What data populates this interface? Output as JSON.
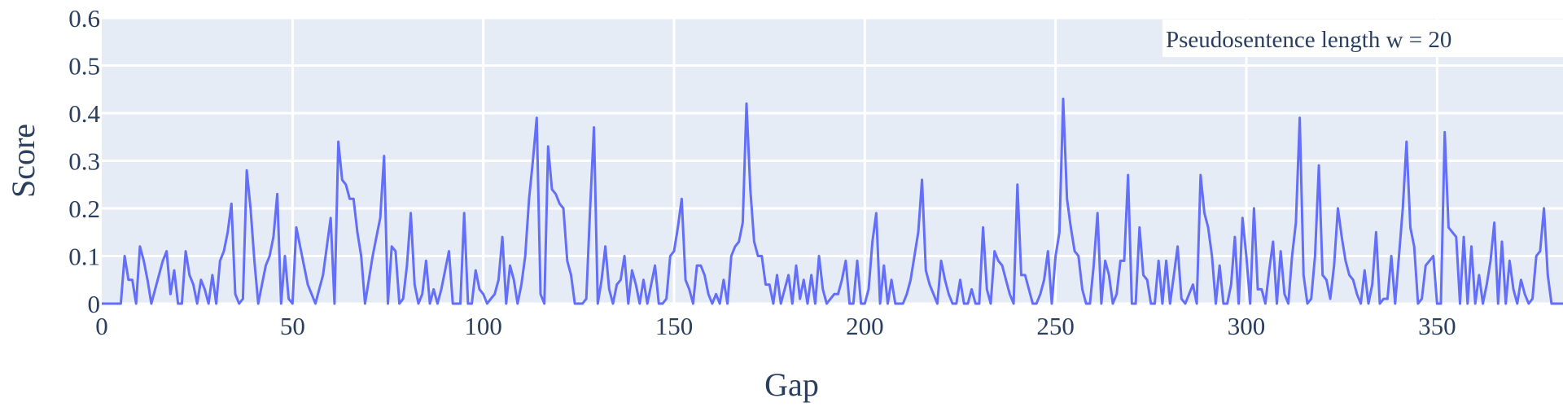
{
  "chart_data": {
    "type": "line",
    "title": "",
    "xlabel": "Gap",
    "ylabel": "Score",
    "xlim": [
      0,
      383
    ],
    "ylim": [
      0,
      0.6
    ],
    "x_ticks": [
      0,
      50,
      100,
      150,
      200,
      250,
      300,
      350
    ],
    "y_ticks": [
      0,
      0.1,
      0.2,
      0.3,
      0.4,
      0.5,
      0.6
    ],
    "y_tick_labels": [
      "0",
      "0.1",
      "0.2",
      "0.3",
      "0.4",
      "0.5",
      "0.6"
    ],
    "grid": true,
    "legend_position": "top-right",
    "annotation": "Pseudosentence length w = 20",
    "colors": {
      "line": "#636efa",
      "plot_bg": "#e5ecf6",
      "grid": "#ffffff",
      "text": "#2a3f5f"
    },
    "series": [
      {
        "x_start": 0,
        "values": [
          0,
          0,
          0,
          0,
          0,
          0,
          0.1,
          0.05,
          0.05,
          0,
          0.12,
          0.09,
          0.05,
          0,
          0.03,
          0.06,
          0.09,
          0.11,
          0.02,
          0.07,
          0,
          0,
          0.11,
          0.06,
          0.04,
          0,
          0.05,
          0.03,
          0,
          0.06,
          0,
          0.09,
          0.11,
          0.15,
          0.21,
          0.02,
          0,
          0.01,
          0.28,
          0.2,
          0.09,
          0,
          0.04,
          0.08,
          0.1,
          0.14,
          0.23,
          0,
          0.1,
          0.01,
          0,
          0.16,
          0.12,
          0.08,
          0.04,
          0.02,
          0,
          0.03,
          0.06,
          0.12,
          0.18,
          0,
          0.34,
          0.26,
          0.25,
          0.22,
          0.22,
          0.15,
          0.1,
          0,
          0.05,
          0.1,
          0.14,
          0.18,
          0.31,
          0,
          0.12,
          0.11,
          0,
          0.01,
          0.08,
          0.19,
          0.04,
          0,
          0.02,
          0.09,
          0,
          0.03,
          0,
          0.03,
          0.07,
          0.11,
          0,
          0,
          0,
          0.19,
          0,
          0,
          0.07,
          0.03,
          0.02,
          0,
          0.01,
          0.02,
          0.05,
          0.14,
          0,
          0.08,
          0.05,
          0,
          0.04,
          0.1,
          0.22,
          0.3,
          0.39,
          0.02,
          0,
          0.33,
          0.24,
          0.23,
          0.21,
          0.2,
          0.09,
          0.06,
          0,
          0,
          0,
          0.01,
          0.2,
          0.37,
          0,
          0.05,
          0.12,
          0.03,
          0,
          0.04,
          0.05,
          0.1,
          0,
          0.07,
          0.04,
          0,
          0.05,
          0,
          0.04,
          0.08,
          0,
          0,
          0.01,
          0.1,
          0.11,
          0.16,
          0.22,
          0.05,
          0.03,
          0,
          0.08,
          0.08,
          0.06,
          0.02,
          0,
          0.02,
          0,
          0.05,
          0,
          0.1,
          0.12,
          0.13,
          0.17,
          0.42,
          0.24,
          0.13,
          0.1,
          0.1,
          0.04,
          0.04,
          0,
          0.06,
          0,
          0.03,
          0.06,
          0,
          0.08,
          0.01,
          0.05,
          0,
          0.06,
          0,
          0.1,
          0.03,
          0,
          0.01,
          0.02,
          0.02,
          0.05,
          0.09,
          0,
          0,
          0.09,
          0,
          0,
          0.03,
          0.13,
          0.19,
          0,
          0.08,
          0,
          0.05,
          0,
          0,
          0,
          0.02,
          0.05,
          0.1,
          0.15,
          0.26,
          0.07,
          0.04,
          0.02,
          0,
          0.09,
          0.05,
          0.02,
          0,
          0,
          0.05,
          0,
          0,
          0.03,
          0,
          0,
          0.16,
          0.03,
          0,
          0.11,
          0.09,
          0.08,
          0.05,
          0.02,
          0,
          0.25,
          0.06,
          0.06,
          0.03,
          0,
          0,
          0.02,
          0.05,
          0.11,
          0,
          0.1,
          0.15,
          0.43,
          0.22,
          0.16,
          0.11,
          0.1,
          0.03,
          0,
          0,
          0.08,
          0.19,
          0,
          0.09,
          0.06,
          0,
          0.02,
          0.09,
          0.09,
          0.27,
          0,
          0,
          0.16,
          0.06,
          0.05,
          0,
          0,
          0.09,
          0,
          0.09,
          0,
          0.06,
          0.12,
          0.01,
          0,
          0.02,
          0.04,
          0,
          0.27,
          0.19,
          0.16,
          0.1,
          0,
          0.08,
          0,
          0,
          0.04,
          0.14,
          0,
          0.18,
          0.1,
          0,
          0.2,
          0.03,
          0.03,
          0,
          0.07,
          0.13,
          0,
          0.11,
          0.02,
          0,
          0.1,
          0.17,
          0.39,
          0.06,
          0,
          0.01,
          0.1,
          0.29,
          0.06,
          0.05,
          0.01,
          0.08,
          0.2,
          0.14,
          0.09,
          0.06,
          0.05,
          0.02,
          0,
          0.07,
          0,
          0.04,
          0.15,
          0,
          0.01,
          0.01,
          0.1,
          0,
          0.1,
          0.2,
          0.34,
          0.16,
          0.12,
          0,
          0.01,
          0.08,
          0.09,
          0.1,
          0,
          0,
          0.36,
          0.16,
          0.15,
          0.14,
          0,
          0.14,
          0,
          0.12,
          0,
          0.06,
          0,
          0.04,
          0.09,
          0.17,
          0,
          0.13,
          0,
          0.09,
          0.03,
          0,
          0.05,
          0.02,
          0,
          0.01,
          0.1,
          0.11,
          0.2,
          0.06,
          0,
          0,
          0,
          0,
          0,
          0
        ]
      }
    ]
  }
}
